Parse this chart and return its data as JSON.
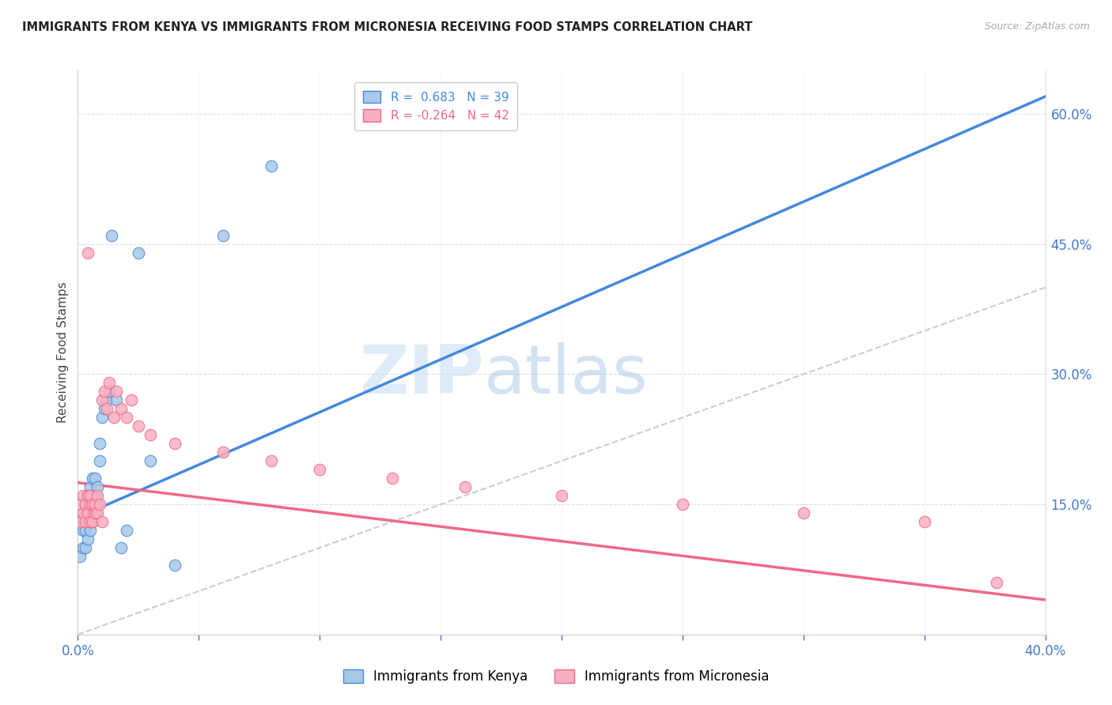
{
  "title": "IMMIGRANTS FROM KENYA VS IMMIGRANTS FROM MICRONESIA RECEIVING FOOD STAMPS CORRELATION CHART",
  "source": "Source: ZipAtlas.com",
  "legend_kenya": "Immigrants from Kenya",
  "legend_micronesia": "Immigrants from Micronesia",
  "R_kenya": 0.683,
  "N_kenya": 39,
  "R_micronesia": -0.264,
  "N_micronesia": 42,
  "color_kenya": "#a8c8e8",
  "color_micronesia": "#f8b0c0",
  "color_kenya_line": "#4488dd",
  "color_micronesia_line": "#f06888",
  "color_reference_line": "#cccccc",
  "kenya_x": [
    0.001,
    0.002,
    0.002,
    0.002,
    0.003,
    0.003,
    0.003,
    0.003,
    0.004,
    0.004,
    0.004,
    0.005,
    0.005,
    0.005,
    0.005,
    0.006,
    0.006,
    0.006,
    0.006,
    0.007,
    0.007,
    0.007,
    0.008,
    0.008,
    0.009,
    0.009,
    0.01,
    0.011,
    0.012,
    0.013,
    0.014,
    0.016,
    0.018,
    0.02,
    0.025,
    0.03,
    0.04,
    0.06,
    0.08
  ],
  "kenya_y": [
    0.09,
    0.1,
    0.12,
    0.13,
    0.1,
    0.12,
    0.14,
    0.15,
    0.11,
    0.13,
    0.16,
    0.12,
    0.14,
    0.15,
    0.17,
    0.13,
    0.15,
    0.16,
    0.18,
    0.14,
    0.16,
    0.18,
    0.15,
    0.17,
    0.2,
    0.22,
    0.25,
    0.26,
    0.27,
    0.28,
    0.46,
    0.27,
    0.1,
    0.12,
    0.44,
    0.2,
    0.08,
    0.46,
    0.54
  ],
  "micronesia_x": [
    0.001,
    0.001,
    0.002,
    0.002,
    0.003,
    0.003,
    0.004,
    0.004,
    0.004,
    0.005,
    0.005,
    0.005,
    0.006,
    0.006,
    0.007,
    0.007,
    0.008,
    0.008,
    0.009,
    0.01,
    0.01,
    0.011,
    0.012,
    0.013,
    0.015,
    0.016,
    0.018,
    0.02,
    0.022,
    0.025,
    0.03,
    0.04,
    0.06,
    0.08,
    0.1,
    0.13,
    0.16,
    0.2,
    0.25,
    0.3,
    0.35,
    0.38
  ],
  "micronesia_y": [
    0.13,
    0.15,
    0.14,
    0.16,
    0.13,
    0.15,
    0.14,
    0.16,
    0.44,
    0.13,
    0.15,
    0.16,
    0.13,
    0.15,
    0.14,
    0.15,
    0.14,
    0.16,
    0.15,
    0.13,
    0.27,
    0.28,
    0.26,
    0.29,
    0.25,
    0.28,
    0.26,
    0.25,
    0.27,
    0.24,
    0.23,
    0.22,
    0.21,
    0.2,
    0.19,
    0.18,
    0.17,
    0.16,
    0.15,
    0.14,
    0.13,
    0.06
  ],
  "kenya_trendline_x": [
    0.0,
    0.4
  ],
  "kenya_trendline_y": [
    0.135,
    0.62
  ],
  "micronesia_trendline_x": [
    0.0,
    0.4
  ],
  "micronesia_trendline_y": [
    0.175,
    0.04
  ],
  "ref_line_x": [
    0.0,
    0.65
  ],
  "ref_line_y": [
    0.0,
    0.65
  ],
  "watermark_zip": "ZIP",
  "watermark_atlas": "atlas",
  "xlim": [
    0.0,
    0.4
  ],
  "ylim": [
    0.0,
    0.65
  ],
  "yticks": [
    0.15,
    0.3,
    0.45,
    0.6
  ],
  "ytick_labels": [
    "15.0%",
    "30.0%",
    "45.0%",
    "60.0%"
  ]
}
